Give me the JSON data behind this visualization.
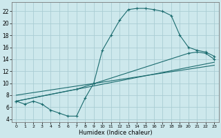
{
  "xlabel": "Humidex (Indice chaleur)",
  "background_color": "#cde8ec",
  "grid_color": "#aacdd4",
  "line_color": "#1a6b6e",
  "xlim": [
    -0.5,
    23.5
  ],
  "ylim": [
    3.5,
    23.5
  ],
  "xticks": [
    0,
    1,
    2,
    3,
    4,
    5,
    6,
    7,
    8,
    9,
    10,
    11,
    12,
    13,
    14,
    15,
    16,
    17,
    18,
    19,
    20,
    21,
    22,
    23
  ],
  "yticks": [
    4,
    6,
    8,
    10,
    12,
    14,
    16,
    18,
    20,
    22
  ],
  "line1_x": [
    0,
    1,
    2,
    3,
    4,
    5,
    6,
    7,
    8,
    9,
    10,
    11,
    12,
    13,
    14,
    15,
    16,
    17,
    18,
    19,
    20,
    21,
    22,
    23
  ],
  "line1_y": [
    7.0,
    6.5,
    7.0,
    6.5,
    5.5,
    5.0,
    4.5,
    4.5,
    7.5,
    10.0,
    15.5,
    18.0,
    20.5,
    22.3,
    22.5,
    22.5,
    22.3,
    22.0,
    21.3,
    18.0,
    16.0,
    15.5,
    15.2,
    14.5
  ],
  "line2_x": [
    0,
    23
  ],
  "line2_y": [
    7.0,
    13.5
  ],
  "line3_x": [
    0,
    23
  ],
  "line3_y": [
    8.0,
    13.0
  ],
  "line4_x": [
    0,
    7,
    20,
    21,
    22,
    23
  ],
  "line4_y": [
    7.0,
    9.0,
    15.0,
    15.2,
    15.0,
    14.0
  ],
  "xtick_fontsize": 4.5,
  "ytick_fontsize": 5.5,
  "xlabel_fontsize": 6.0
}
